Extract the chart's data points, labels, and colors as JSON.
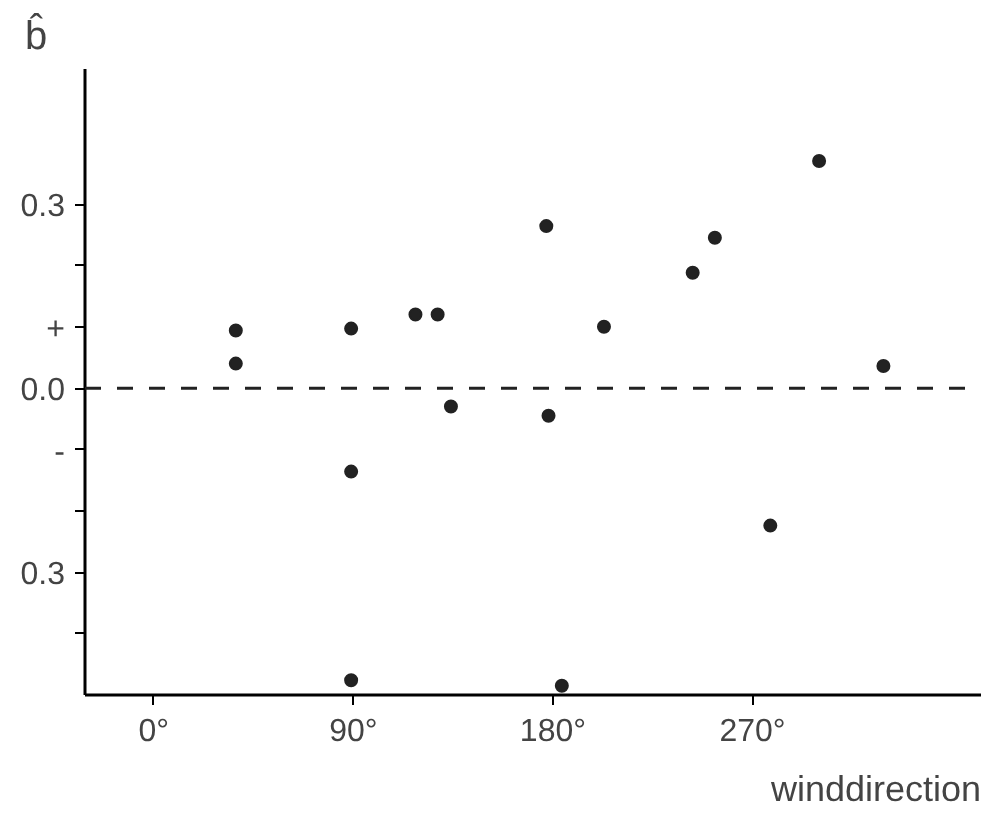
{
  "chart_data": {
    "type": "scatter",
    "ylabel": "b̂",
    "xlabel": "winddirection",
    "x": [
      37,
      37,
      89,
      89,
      89,
      118,
      128,
      134,
      177,
      178,
      184,
      203,
      243,
      253,
      278,
      300,
      329
    ],
    "values": [
      0.094,
      0.04,
      0.097,
      -0.136,
      -0.476,
      0.12,
      0.12,
      -0.03,
      0.264,
      -0.045,
      -0.485,
      0.1,
      0.188,
      0.245,
      -0.224,
      0.37,
      0.036
    ],
    "color": "#222222",
    "marker": "circle",
    "xlim": [
      -31,
      373
    ],
    "ylim": [
      -0.5,
      0.52
    ],
    "xticks": [
      {
        "value": 0,
        "label": "0°"
      },
      {
        "value": 90,
        "label": "90°"
      },
      {
        "value": 180,
        "label": "180°"
      },
      {
        "value": 270,
        "label": "270°"
      }
    ],
    "yticks": [
      {
        "value": 0.3,
        "label": "0.3"
      },
      {
        "value": 0.2,
        "label": null
      },
      {
        "value": 0.1,
        "label": "+"
      },
      {
        "value": 0,
        "label": "0.0"
      },
      {
        "value": -0.1,
        "label": "-"
      },
      {
        "value": -0.2,
        "label": null
      },
      {
        "value": -0.3,
        "label": "0.3"
      },
      {
        "value": -0.4,
        "label": null
      }
    ],
    "ref_lines": [
      {
        "axis": "y",
        "value": 0,
        "line_style": "dashed",
        "color": "#222222"
      }
    ],
    "grid": false
  }
}
